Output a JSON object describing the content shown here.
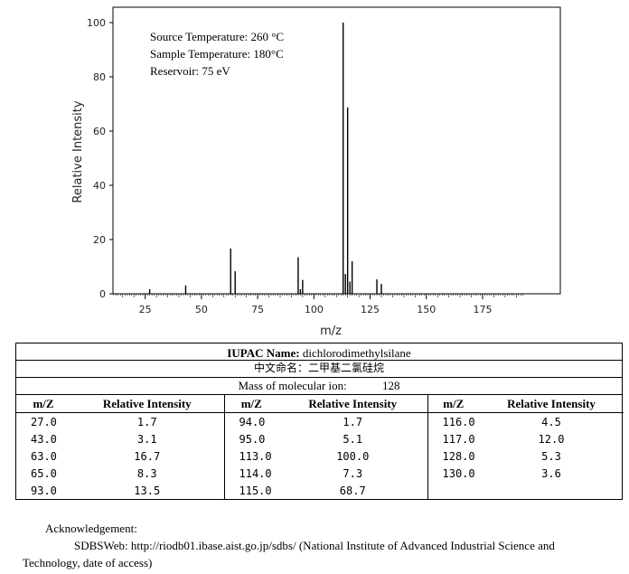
{
  "chart_data": {
    "type": "bar",
    "xlabel": "m/z",
    "ylabel": "Relative Intensity",
    "xlim": [
      10,
      195
    ],
    "ylim": [
      0,
      100
    ],
    "xticks": [
      25,
      50,
      75,
      100,
      125,
      150,
      175
    ],
    "yticks": [
      0,
      20,
      40,
      60,
      80,
      100
    ],
    "annotations": [
      "Source Temperature: 260 °C",
      "Sample Temperature: 180°C",
      "Reservoir: 75 eV"
    ],
    "x": [
      27,
      43,
      63,
      65,
      93,
      94,
      95,
      113,
      114,
      115,
      116,
      117,
      128,
      130
    ],
    "values": [
      1.7,
      3.1,
      16.7,
      8.3,
      13.5,
      1.7,
      5.1,
      100.0,
      7.3,
      68.7,
      4.5,
      12.0,
      5.3,
      3.6
    ]
  },
  "compound": {
    "iupac_label": "IUPAC Name:",
    "iupac_name": "dichlorodimethylsilane",
    "cn_label": "中文命名：",
    "cn_name": "二甲基二氯硅烷",
    "mass_label": "Mass of molecular ion:",
    "mass_value": "128"
  },
  "peak_table": {
    "headers": [
      "m/Z",
      "Relative Intensity",
      "m/Z",
      "Relative Intensity",
      "m/Z",
      "Relative Intensity"
    ],
    "rows": [
      [
        "27.0",
        "1.7",
        "94.0",
        "1.7",
        "116.0",
        "4.5"
      ],
      [
        "43.0",
        "3.1",
        "95.0",
        "5.1",
        "117.0",
        "12.0"
      ],
      [
        "63.0",
        "16.7",
        "113.0",
        "100.0",
        "128.0",
        "5.3"
      ],
      [
        "65.0",
        "8.3",
        "114.0",
        "7.3",
        "130.0",
        "3.6"
      ],
      [
        "93.0",
        "13.5",
        "115.0",
        "68.7",
        "",
        ""
      ]
    ]
  },
  "acknowledgement": {
    "heading": "Acknowledgement:",
    "line1": "SDBSWeb: http://riodb01.ibase.aist.go.jp/sdbs/ (National Institute of Advanced Industrial Science and",
    "line2": "Technology, date of access)"
  }
}
